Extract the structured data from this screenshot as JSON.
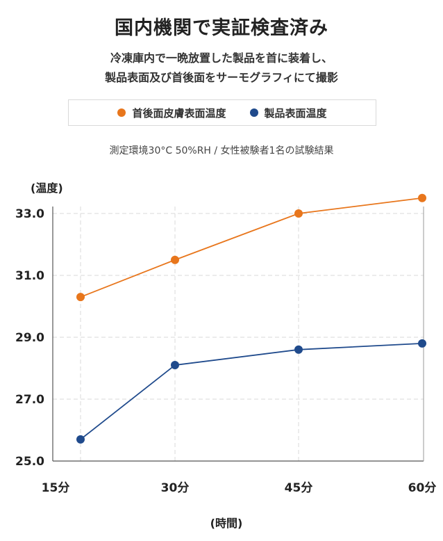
{
  "header": {
    "title": "国内機関で実証検査済み",
    "subtitle_line1": "冷凍庫内で一晩放置した製品を首に装着し、",
    "subtitle_line2": "製品表面及び首後面をサーモグラフィにて撮影",
    "note": "測定環境30°C 50%RH / 女性被験者1名の試験結果"
  },
  "chart_data": {
    "type": "line",
    "categories": [
      "15分",
      "30分",
      "45分",
      "60分"
    ],
    "series": [
      {
        "name": "首後面皮膚表面温度",
        "color": "#e8761c",
        "values": [
          30.3,
          31.5,
          33.0,
          33.5
        ]
      },
      {
        "name": "製品表面温度",
        "color": "#1f4a8c",
        "values": [
          25.7,
          28.1,
          28.6,
          28.8
        ]
      }
    ],
    "xlabel": "(時間)",
    "ylabel": "(温度)",
    "ylim": [
      25.0,
      33.0
    ],
    "yticks": [
      "25.0",
      "27.0",
      "29.0",
      "31.0",
      "33.0"
    ],
    "grid": true,
    "legend": "top"
  }
}
